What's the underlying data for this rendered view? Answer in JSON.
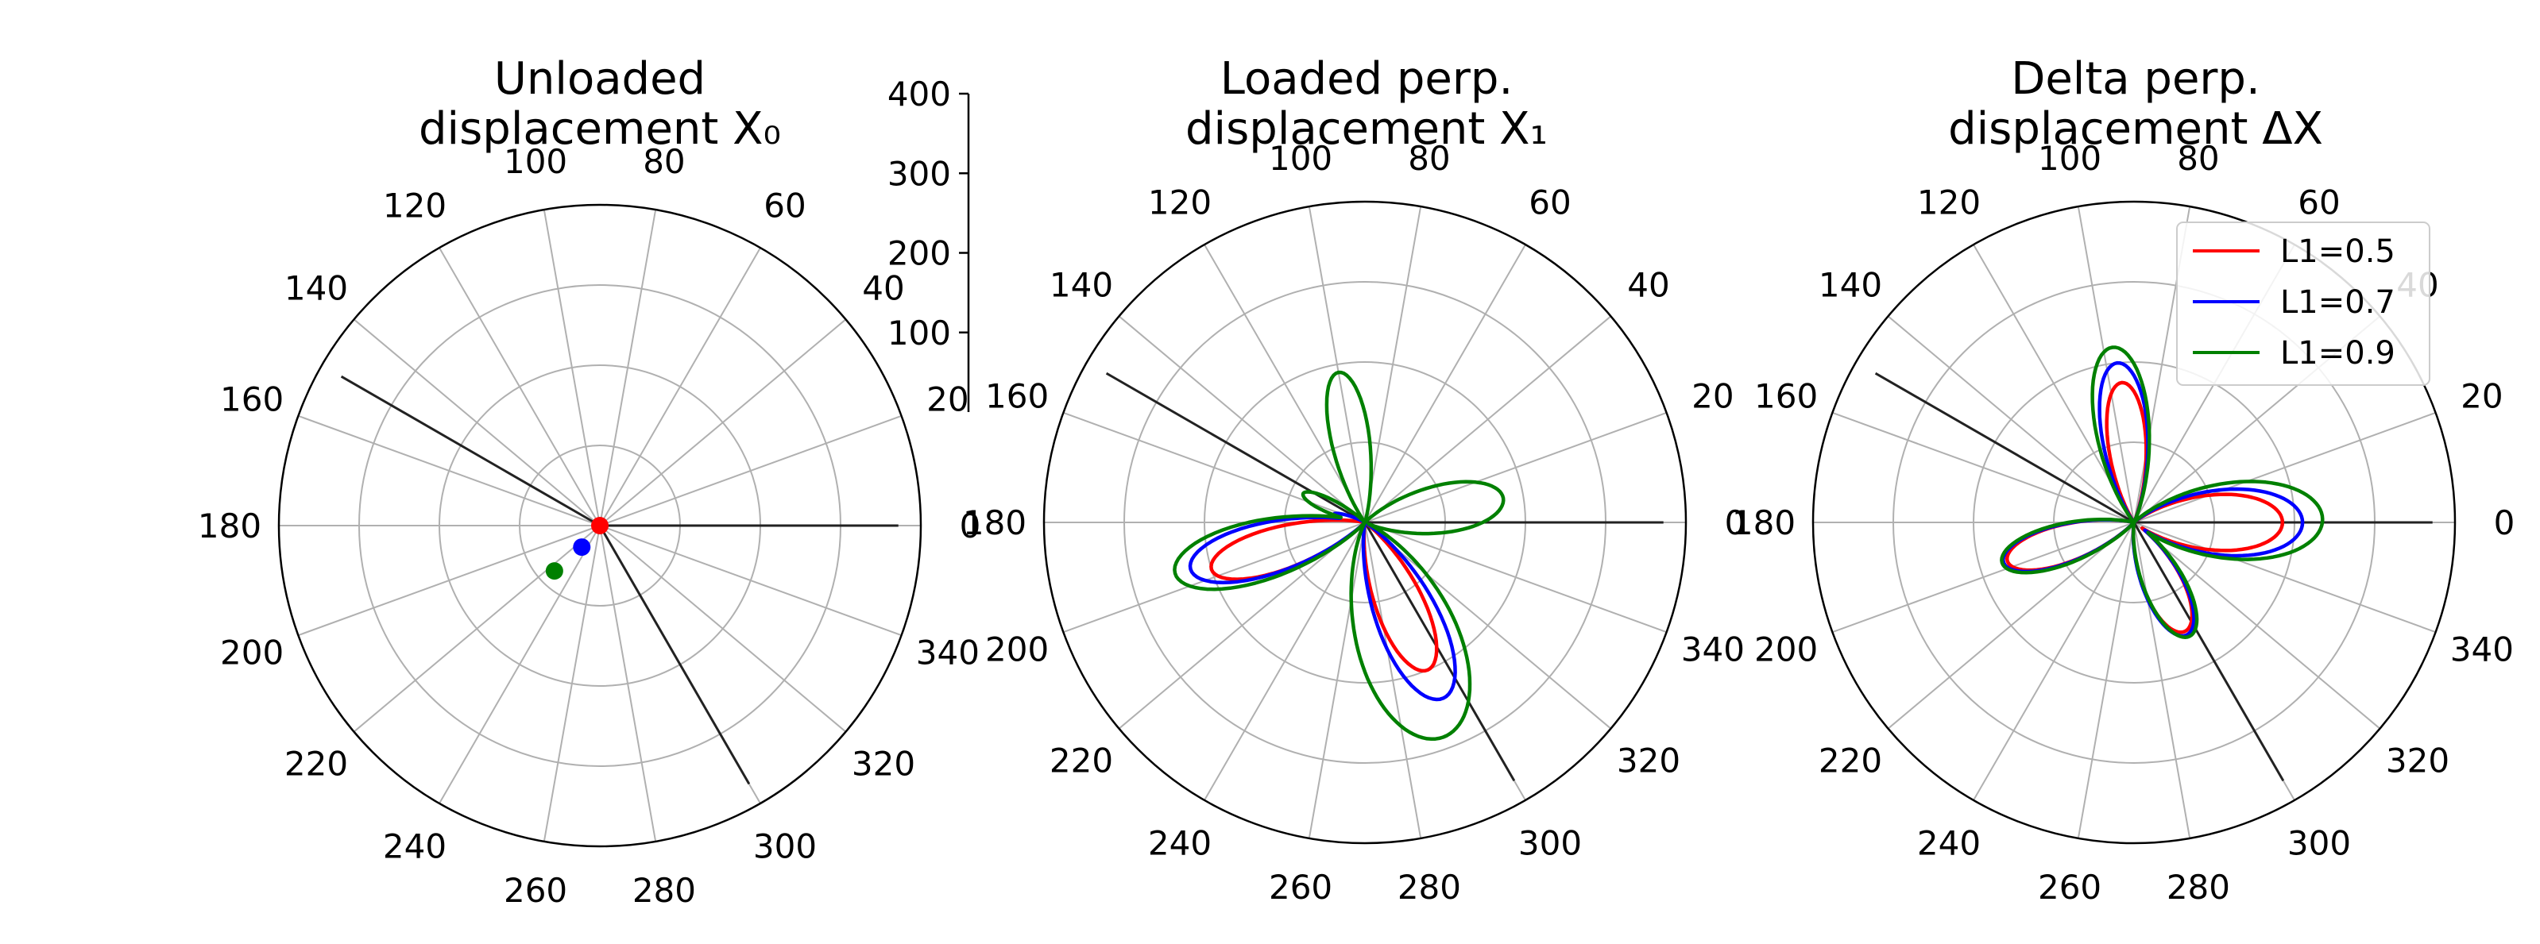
{
  "figure": {
    "panels": [
      {
        "title_line1": "Unloaded",
        "title_line2": "displacement X₀"
      },
      {
        "title_line1": "Loaded perp.",
        "title_line2": "displacement X₁"
      },
      {
        "title_line1": "Delta perp.",
        "title_line2": "displacement ΔX"
      }
    ]
  },
  "chart_data": [
    {
      "type": "scatter",
      "coordinate_system": "polar",
      "title": "Unloaded\ndisplacement X₀",
      "theta_tick_labels": [
        "0",
        "20",
        "40",
        "60",
        "80",
        "100",
        "120",
        "140",
        "160",
        "180",
        "200",
        "220",
        "240",
        "260",
        "280",
        "300",
        "320",
        "340"
      ],
      "radial_axis": {
        "range": [
          0,
          400
        ],
        "tick_labels": [
          "100",
          "200",
          "300",
          "400"
        ],
        "shown": "separate vertical axis beside the panel"
      },
      "reference_lines_deg": [
        0,
        150,
        300
      ],
      "series": [
        {
          "name": "L1=0.5",
          "color": "#ff0000",
          "points": [
            {
              "theta": 0,
              "r": 0
            }
          ]
        },
        {
          "name": "L1=0.7",
          "color": "#0000ff",
          "points": [
            {
              "theta": 230,
              "r": 35
            }
          ]
        },
        {
          "name": "L1=0.9",
          "color": "#008000",
          "points": [
            {
              "theta": 225,
              "r": 80
            }
          ]
        }
      ]
    },
    {
      "type": "line",
      "coordinate_system": "polar",
      "title": "Loaded perp.\ndisplacement X₁",
      "theta_tick_labels": [
        "0",
        "20",
        "40",
        "60",
        "80",
        "100",
        "120",
        "140",
        "160",
        "180",
        "200",
        "220",
        "240",
        "260",
        "280",
        "300",
        "320",
        "340"
      ],
      "radial_axis": {
        "range": [
          0,
          400
        ]
      },
      "reference_lines_deg": [
        0,
        150,
        300
      ],
      "series": [
        {
          "name": "L1=0.5",
          "color": "#ff0000",
          "lobes": [
            {
              "center": 197,
              "width": 30,
              "r": 200
            },
            {
              "center": 293,
              "width": 33,
              "r": 200
            }
          ]
        },
        {
          "name": "L1=0.7",
          "color": "#0000ff",
          "lobes": [
            {
              "center": 195,
              "width": 32,
              "r": 225
            },
            {
              "center": 294,
              "width": 36,
              "r": 240
            },
            {
              "center": 165,
              "width": 16,
              "r": 40
            }
          ]
        },
        {
          "name": "L1=0.9",
          "color": "#008000",
          "lobes": [
            {
              "center": 195,
              "width": 34,
              "r": 245
            },
            {
              "center": 290,
              "width": 50,
              "r": 285
            },
            {
              "center": 100,
              "width": 28,
              "r": 190
            },
            {
              "center": 10,
              "width": 38,
              "r": 175
            },
            {
              "center": 155,
              "width": 22,
              "r": 85
            }
          ]
        }
      ]
    },
    {
      "type": "line",
      "coordinate_system": "polar",
      "title": "Delta perp.\ndisplacement ΔX",
      "theta_tick_labels": [
        "0",
        "20",
        "40",
        "60",
        "80",
        "100",
        "120",
        "140",
        "160",
        "180",
        "200",
        "220",
        "240",
        "260",
        "280",
        "300",
        "320",
        "340"
      ],
      "radial_axis": {
        "range": [
          0,
          400
        ]
      },
      "reference_lines_deg": [
        0,
        150,
        300
      ],
      "legend": {
        "placement": "upper right",
        "entries": [
          "L1=0.5",
          "L1=0.7",
          "L1=0.9"
        ]
      },
      "series": [
        {
          "name": "L1=0.5",
          "color": "#ff0000",
          "lobes": [
            {
              "center": 95,
              "width": 30,
              "r": 175
            },
            {
              "center": 0,
              "width": 42,
              "r": 185
            },
            {
              "center": 197,
              "width": 32,
              "r": 165
            },
            {
              "center": 295,
              "width": 36,
              "r": 150
            }
          ]
        },
        {
          "name": "L1=0.7",
          "color": "#0000ff",
          "lobes": [
            {
              "center": 96,
              "width": 32,
              "r": 200
            },
            {
              "center": 0,
              "width": 44,
              "r": 210
            },
            {
              "center": 197,
              "width": 32,
              "r": 170
            },
            {
              "center": 295,
              "width": 36,
              "r": 155
            }
          ]
        },
        {
          "name": "L1=0.9",
          "color": "#008000",
          "lobes": [
            {
              "center": 97,
              "width": 34,
              "r": 220
            },
            {
              "center": 1,
              "width": 46,
              "r": 235
            },
            {
              "center": 197,
              "width": 33,
              "r": 172
            },
            {
              "center": 296,
              "width": 36,
              "r": 158
            }
          ]
        }
      ]
    }
  ]
}
